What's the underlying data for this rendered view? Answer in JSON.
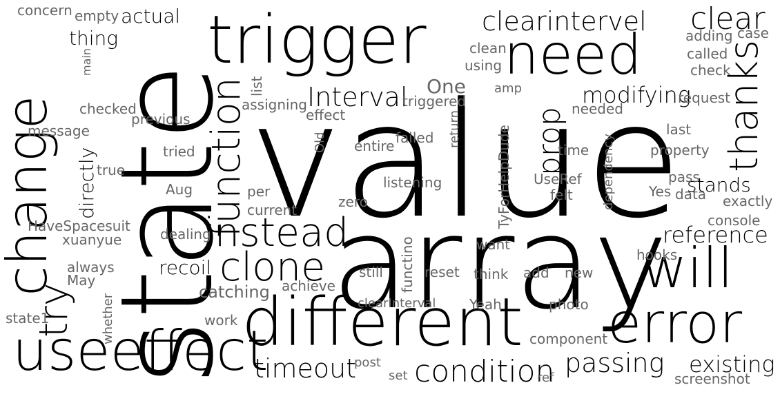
{
  "words": [
    "value",
    "array",
    "state",
    "trigger",
    "different",
    "change",
    "need",
    "useeffect",
    "error",
    "will",
    "instead",
    "function",
    "clone",
    "try",
    "thanks",
    "clear",
    "Interval",
    "clearintervel",
    "prop",
    "condition",
    "passing",
    "timeout",
    "existing",
    "modifying",
    "reference",
    "recoil",
    "stands",
    "directly",
    "actual",
    "thing",
    "concern",
    "empty",
    "HaveSpacesuit",
    "xuanyue",
    "always",
    "May",
    "state1",
    "whether",
    "catching",
    "work",
    "dealing",
    "achieve",
    "current",
    "per",
    "Aug",
    "true",
    "tried",
    "message",
    "previous",
    "checked",
    "main",
    "list",
    "assigning",
    "effect",
    "Old",
    "entire",
    "failed",
    "listening",
    "zero",
    "TyForHelpDude",
    "functino",
    "still",
    "reset",
    "think",
    "add",
    "new",
    "Yeah",
    "photo",
    "clearInterval",
    "component",
    "post",
    "set",
    "ref",
    "screenshot",
    "console",
    "exactly",
    "data",
    "Yes",
    "pass",
    "property",
    "last",
    "request",
    "check",
    "called",
    "adding",
    "case",
    "clean",
    "using",
    "amp",
    "One",
    "triggered",
    "return",
    "needed",
    "time",
    "dependency",
    "UseRef",
    "felt",
    "want",
    "hooks"
  ]
}
